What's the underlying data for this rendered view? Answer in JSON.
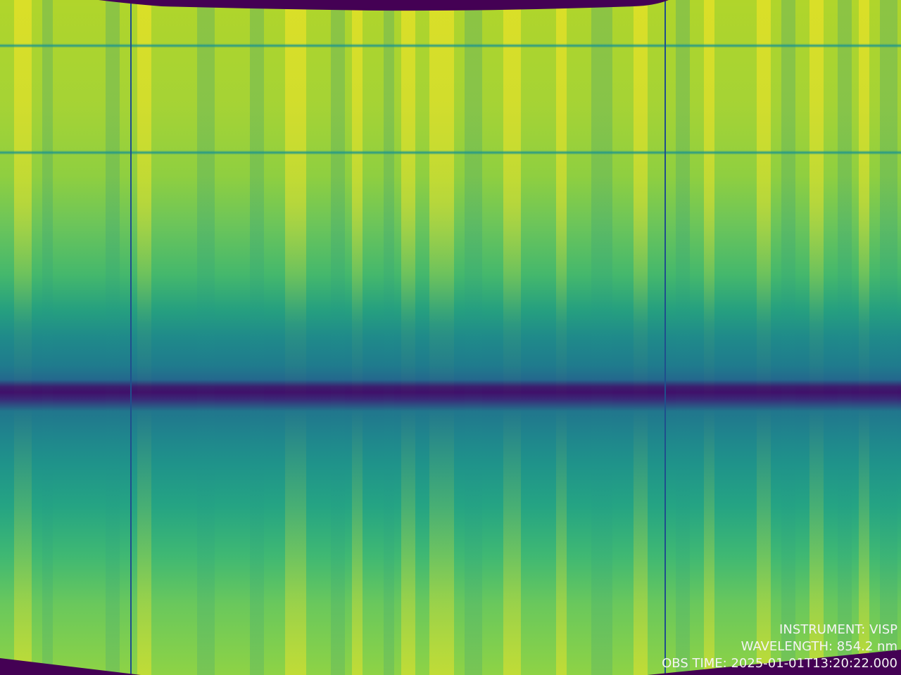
{
  "colormap": "viridis",
  "colors": {
    "mask": "#440154",
    "text": "#f4f4f4",
    "slit_line": "#1f4f8c"
  },
  "overlay": {
    "instrument": "INSTRUMENT: VISP",
    "wavelength": "WAVELENGTH: 854.2 nm",
    "obs_time": "OBS TIME: 2025-01-01T13:20:22.000"
  }
}
